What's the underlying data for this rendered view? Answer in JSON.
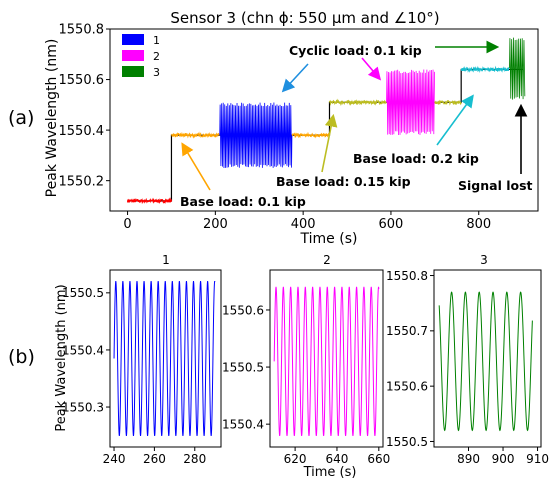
{
  "figure": {
    "panel_a_label": "(a)",
    "panel_b_label": "(b)"
  },
  "chart_data": [
    {
      "type": "line",
      "panel": "(a)",
      "title": "Sensor 3 (chn ϕ: 550 µm and ∠10°)",
      "xlabel": "Time (s)",
      "ylabel": "Peak Wavelength (nm)",
      "xlim": [
        -40,
        935
      ],
      "ylim": [
        1550.08,
        1550.8
      ],
      "xticks": [
        0,
        200,
        400,
        600,
        800
      ],
      "yticks": [
        1550.2,
        1550.4,
        1550.6,
        1550.8
      ],
      "legend": {
        "position": "top-left",
        "entries": [
          "1",
          "2",
          "3"
        ]
      },
      "grid": false,
      "series": [
        {
          "name": "",
          "color": "#000000",
          "kind": "step",
          "x": [
            0,
            100,
            100,
            200,
            380,
            460,
            460,
            600,
            700,
            760,
            760,
            900
          ],
          "y": [
            1550.12,
            1550.12,
            1550.38,
            1550.38,
            1550.38,
            1550.38,
            1550.51,
            1550.51,
            1550.51,
            1550.51,
            1550.64,
            1550.64
          ]
        },
        {
          "name": "",
          "color": "#ff0000",
          "kind": "noise",
          "x": [
            0,
            100
          ],
          "level": 1550.12,
          "noise": 0.006
        },
        {
          "name": "",
          "color": "#ffa500",
          "kind": "noise",
          "x": [
            100,
            210
          ],
          "level": 1550.38,
          "noise": 0.006
        },
        {
          "name": "1",
          "color": "#0000ff",
          "kind": "oscillation",
          "x": [
            210,
            375
          ],
          "center": 1550.38,
          "amplitude": 0.13,
          "period": 3.5
        },
        {
          "name": "",
          "color": "#ffa500",
          "kind": "noise",
          "x": [
            375,
            460
          ],
          "level": 1550.38,
          "noise": 0.006
        },
        {
          "name": "",
          "color": "#bcbd22",
          "kind": "noise",
          "x": [
            460,
            590
          ],
          "level": 1550.51,
          "noise": 0.006
        },
        {
          "name": "2",
          "color": "#ff00ff",
          "kind": "oscillation",
          "x": [
            590,
            700
          ],
          "center": 1550.51,
          "amplitude": 0.13,
          "period": 3.5
        },
        {
          "name": "",
          "color": "#bcbd22",
          "kind": "noise",
          "x": [
            700,
            760
          ],
          "level": 1550.51,
          "noise": 0.006
        },
        {
          "name": "",
          "color": "#17becf",
          "kind": "noise",
          "x": [
            760,
            870
          ],
          "level": 1550.64,
          "noise": 0.006
        },
        {
          "name": "3",
          "color": "#008000",
          "kind": "oscillation",
          "x": [
            870,
            905
          ],
          "center": 1550.645,
          "amplitude": 0.125,
          "period": 4
        }
      ],
      "annotations": [
        {
          "text": "Cyclic load: 0.1 kip",
          "color": "#000000",
          "bold": true
        },
        {
          "text": "Base load: 0.1 kip",
          "color": "#ffa500",
          "bold": true
        },
        {
          "text": "Base load: 0.15 kip",
          "color": "#bcbd22",
          "bold": true
        },
        {
          "text": "Base load: 0.2 kip",
          "color": "#17becf",
          "bold": true
        },
        {
          "text": "Signal lost",
          "color": "#000000",
          "bold": true
        }
      ]
    },
    {
      "type": "line",
      "panel": "(b)",
      "title": "1",
      "xlabel": "",
      "ylabel": "Peak Wavelength (nm)",
      "xlim": [
        238,
        293
      ],
      "ylim": [
        1550.23,
        1550.54
      ],
      "xticks": [
        240,
        260,
        280
      ],
      "yticks": [
        1550.3,
        1550.4,
        1550.5
      ],
      "series": [
        {
          "name": "1",
          "color": "#0000ff",
          "x_start": 240,
          "x_end": 290,
          "center": 1550.385,
          "amplitude": 0.135,
          "period": 3.5,
          "phase": 0
        }
      ]
    },
    {
      "type": "line",
      "panel": "(b)",
      "title": "2",
      "xlabel": "Time (s)",
      "ylabel": "",
      "xlim": [
        608,
        662
      ],
      "ylim": [
        1550.36,
        1550.67
      ],
      "xticks": [
        620,
        640,
        660
      ],
      "yticks": [
        1550.4,
        1550.5,
        1550.6
      ],
      "series": [
        {
          "name": "2",
          "color": "#ff00ff",
          "x_start": 610,
          "x_end": 660,
          "center": 1550.51,
          "amplitude": 0.13,
          "period": 3.5,
          "phase": 0
        }
      ]
    },
    {
      "type": "line",
      "panel": "(b)",
      "title": "3",
      "xlabel": "",
      "ylabel": "",
      "xlim": [
        880,
        911
      ],
      "ylim": [
        1550.49,
        1550.81
      ],
      "xticks": [
        890,
        900,
        910
      ],
      "yticks": [
        1550.5,
        1550.6,
        1550.7,
        1550.8
      ],
      "series": [
        {
          "name": "3",
          "color": "#008000",
          "x_start": 881.5,
          "x_end": 908.5,
          "center": 1550.645,
          "amplitude": 0.125,
          "period": 4,
          "phase": 2.2
        }
      ]
    }
  ]
}
